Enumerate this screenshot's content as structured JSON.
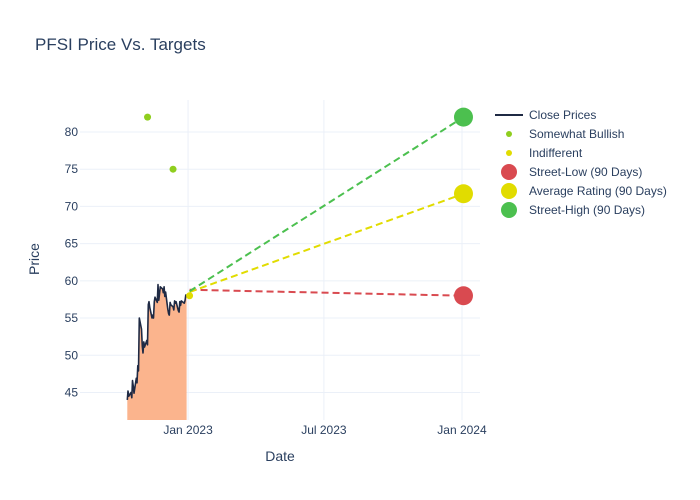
{
  "chart_data": {
    "type": "line",
    "title": "PFSI Price Vs. Targets",
    "xlabel": "Date",
    "ylabel": "Price",
    "x_ticks": [
      "Jan 2023",
      "Jul 2023",
      "Jan 2024"
    ],
    "y_ticks": [
      45,
      50,
      55,
      60,
      65,
      70,
      75,
      80
    ],
    "ylim": [
      41.3,
      84.3
    ],
    "xlim": [
      "2022-08-10",
      "2024-01-25"
    ],
    "grid": true,
    "legend_position": "right",
    "series": [
      {
        "name": "Close Prices",
        "type": "line",
        "color": "#1f2a44",
        "fill_color": "#fbb48d",
        "x": [
          "2022-10-12",
          "2022-10-13",
          "2022-10-14",
          "2022-10-17",
          "2022-10-18",
          "2022-10-19",
          "2022-10-20",
          "2022-10-21",
          "2022-10-24",
          "2022-10-25",
          "2022-10-26",
          "2022-10-27",
          "2022-10-28",
          "2022-10-31",
          "2022-11-01",
          "2022-11-02",
          "2022-11-03",
          "2022-11-04",
          "2022-11-07",
          "2022-11-08",
          "2022-11-09",
          "2022-11-10",
          "2022-11-11",
          "2022-11-14",
          "2022-11-15",
          "2022-11-16",
          "2022-11-17",
          "2022-11-18",
          "2022-11-21",
          "2022-11-22",
          "2022-11-23",
          "2022-11-25",
          "2022-11-28",
          "2022-11-29",
          "2022-11-30",
          "2022-12-01",
          "2022-12-02",
          "2022-12-05",
          "2022-12-06",
          "2022-12-07",
          "2022-12-08",
          "2022-12-09",
          "2022-12-12",
          "2022-12-13",
          "2022-12-14",
          "2022-12-15",
          "2022-12-16",
          "2022-12-19",
          "2022-12-20",
          "2022-12-21",
          "2022-12-22",
          "2022-12-23",
          "2022-12-27",
          "2022-12-28",
          "2022-12-29",
          "2022-12-30"
        ],
        "values": [
          44.0,
          45.2,
          44.5,
          45.0,
          44.3,
          46.6,
          45.8,
          44.9,
          46.9,
          46.3,
          48.6,
          47.9,
          55.0,
          53.5,
          51.2,
          50.3,
          51.8,
          51.1,
          52.0,
          51.4,
          56.8,
          57.2,
          56.4,
          55.0,
          55.4,
          55.0,
          57.2,
          57.8,
          57.1,
          59.5,
          57.4,
          59.2,
          58.9,
          58.4,
          59.2,
          57.9,
          58.5,
          56.2,
          55.6,
          55.4,
          57.1,
          56.8,
          56.5,
          56.1,
          57.3,
          57.0,
          57.2,
          56.0,
          55.8,
          57.2,
          56.7,
          57.3,
          57.0,
          57.4,
          58.1,
          58.0
        ]
      },
      {
        "name": "Somewhat Bullish",
        "type": "scatter",
        "color": "#8fce1e",
        "points": [
          {
            "x": "2022-11-08",
            "y": 82
          },
          {
            "x": "2022-12-12",
            "y": 75
          }
        ]
      },
      {
        "name": "Indifferent",
        "type": "scatter",
        "color": "#e1dc00",
        "points": [
          {
            "x": "2023-01-03",
            "y": 58
          }
        ]
      },
      {
        "name": "Street-Low (90 Days)",
        "type": "target",
        "color": "#d94a50",
        "start": {
          "x": "2023-01-03",
          "y": 58.8
        },
        "end": {
          "x": "2024-01-03",
          "y": 58
        }
      },
      {
        "name": "Average Rating (90 Days)",
        "type": "target",
        "color": "#e1dc00",
        "start": {
          "x": "2023-01-03",
          "y": 58.5
        },
        "end": {
          "x": "2024-01-03",
          "y": 71.7
        }
      },
      {
        "name": "Street-High (90 Days)",
        "type": "target",
        "color": "#4cc04f",
        "start": {
          "x": "2023-01-03",
          "y": 58.6
        },
        "end": {
          "x": "2024-01-03",
          "y": 82
        }
      }
    ]
  }
}
